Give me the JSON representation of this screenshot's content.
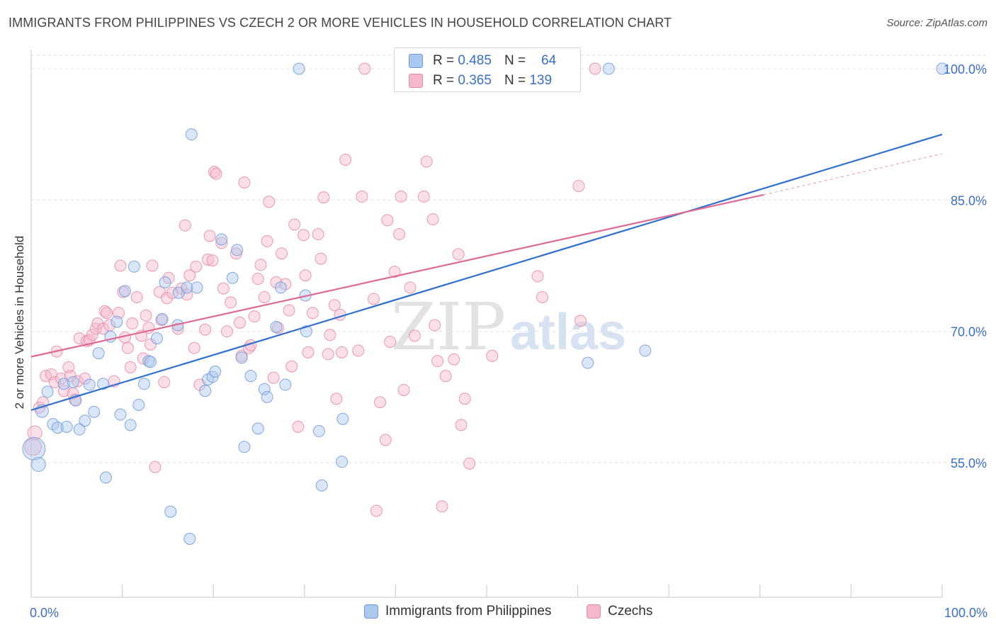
{
  "title": "IMMIGRANTS FROM PHILIPPINES VS CZECH 2 OR MORE VEHICLES IN HOUSEHOLD CORRELATION CHART",
  "source": "Source: ZipAtlas.com",
  "watermark": {
    "part1": "ZIP",
    "part2": "atlas"
  },
  "colors": {
    "blue_fill": "#aac8ee",
    "blue_stroke": "#6e9ad8",
    "blue_line": "#2f6fce",
    "pink_fill": "#f5b8ca",
    "pink_stroke": "#e58aa8",
    "pink_line": "#e06994",
    "accent_text": "#3a6fc7",
    "grid": "#e3e3e3"
  },
  "stats": [
    {
      "swatch": "blue",
      "r_label": "R =",
      "r_value": "0.485",
      "n_label": "N =",
      "n_value": "64"
    },
    {
      "swatch": "pink",
      "r_label": "R =",
      "r_value": "0.365",
      "n_label": "N =",
      "n_value": "139"
    }
  ],
  "legend": [
    {
      "swatch": "blue",
      "label": "Immigrants from Philippines"
    },
    {
      "swatch": "pink",
      "label": "Czechs"
    }
  ],
  "chart_data": {
    "type": "scatter",
    "xlabel": "",
    "ylabel": "2 or more Vehicles in Household",
    "xlim": [
      0,
      100
    ],
    "ylim": [
      41.5,
      101.5
    ],
    "x_tick_labels": [
      {
        "value": 0,
        "label": "0.0%"
      },
      {
        "value": 100,
        "label": "100.0%"
      }
    ],
    "x_minor_ticks": [
      0,
      10,
      20,
      30,
      40,
      50,
      60,
      70,
      80,
      90,
      100
    ],
    "y_ticks": [
      {
        "value": 55,
        "label": "55.0%"
      },
      {
        "value": 70,
        "label": "70.0%"
      },
      {
        "value": 85,
        "label": "85.0%"
      },
      {
        "value": 100,
        "label": "100.0%"
      }
    ],
    "grid": true,
    "legend_position": "bottom-center",
    "series": [
      {
        "name": "Immigrants from Philippines",
        "color": "blue",
        "trend": {
          "x": [
            0,
            100
          ],
          "y": [
            61.0,
            92.5
          ]
        },
        "points": [
          [
            0.3,
            56.6,
            32
          ],
          [
            0.8,
            54.8,
            20
          ],
          [
            1.2,
            60.9,
            18
          ],
          [
            1.8,
            63.1,
            16
          ],
          [
            2.4,
            59.4,
            16
          ],
          [
            2.9,
            59.0,
            16
          ],
          [
            3.6,
            64.0,
            16
          ],
          [
            3.9,
            59.1,
            16
          ],
          [
            4.6,
            64.2,
            16
          ],
          [
            4.9,
            62.1,
            16
          ],
          [
            5.3,
            58.8,
            16
          ],
          [
            5.9,
            59.8,
            16
          ],
          [
            6.4,
            63.9,
            16
          ],
          [
            6.9,
            60.8,
            16
          ],
          [
            7.4,
            67.5,
            16
          ],
          [
            7.9,
            64.0,
            16
          ],
          [
            8.2,
            53.3,
            16
          ],
          [
            8.7,
            69.4,
            16
          ],
          [
            9.4,
            71.1,
            16
          ],
          [
            9.8,
            60.5,
            16
          ],
          [
            10.3,
            74.6,
            16
          ],
          [
            10.9,
            59.3,
            16
          ],
          [
            11.3,
            77.4,
            16
          ],
          [
            11.8,
            61.6,
            16
          ],
          [
            12.4,
            64.0,
            16
          ],
          [
            12.9,
            66.6,
            16
          ],
          [
            13.1,
            66.5,
            16
          ],
          [
            13.8,
            69.2,
            16
          ],
          [
            14.4,
            71.4,
            16
          ],
          [
            14.7,
            75.6,
            16
          ],
          [
            15.3,
            49.4,
            16
          ],
          [
            16.1,
            70.7,
            16
          ],
          [
            16.2,
            74.4,
            16
          ],
          [
            17.1,
            75.0,
            16
          ],
          [
            17.4,
            46.3,
            16
          ],
          [
            17.6,
            92.5,
            16
          ],
          [
            18.2,
            75.0,
            16
          ],
          [
            19.1,
            63.2,
            16
          ],
          [
            19.4,
            64.5,
            16
          ],
          [
            19.9,
            64.8,
            16
          ],
          [
            20.2,
            65.4,
            16
          ],
          [
            20.9,
            80.5,
            16
          ],
          [
            22.1,
            76.1,
            16
          ],
          [
            22.6,
            79.3,
            16
          ],
          [
            23.1,
            67.0,
            16
          ],
          [
            23.4,
            56.8,
            16
          ],
          [
            24.1,
            64.9,
            16
          ],
          [
            24.9,
            58.9,
            16
          ],
          [
            25.6,
            63.4,
            16
          ],
          [
            25.9,
            62.5,
            16
          ],
          [
            26.9,
            70.5,
            16
          ],
          [
            27.4,
            75.0,
            16
          ],
          [
            27.9,
            63.9,
            16
          ],
          [
            29.4,
            100.0,
            16
          ],
          [
            30.1,
            74.1,
            16
          ],
          [
            30.2,
            70.0,
            16
          ],
          [
            31.6,
            58.6,
            16
          ],
          [
            31.9,
            52.4,
            16
          ],
          [
            34.1,
            55.1,
            16
          ],
          [
            34.2,
            60.0,
            16
          ],
          [
            61.1,
            66.4,
            16
          ],
          [
            63.4,
            100.0,
            16
          ],
          [
            67.4,
            67.8,
            16
          ],
          [
            100.0,
            100.0,
            16
          ]
        ]
      },
      {
        "name": "Czechs",
        "color": "pink",
        "trend": {
          "x": [
            0,
            80.4
          ],
          "y": [
            67.1,
            85.6
          ]
        },
        "trend_ext": {
          "x": [
            80.4,
            100
          ],
          "y": [
            85.6,
            90.3
          ]
        },
        "points": [
          [
            0.2,
            56.8,
            24
          ],
          [
            0.4,
            58.4,
            20
          ],
          [
            0.9,
            61.3,
            16
          ],
          [
            1.3,
            61.9,
            16
          ],
          [
            1.6,
            64.9,
            16
          ],
          [
            2.2,
            65.1,
            16
          ],
          [
            2.6,
            64.2,
            16
          ],
          [
            2.8,
            67.7,
            16
          ],
          [
            3.3,
            64.6,
            16
          ],
          [
            3.6,
            63.2,
            16
          ],
          [
            4.1,
            65.9,
            16
          ],
          [
            4.3,
            64.9,
            16
          ],
          [
            4.6,
            62.9,
            16
          ],
          [
            4.8,
            62.2,
            16
          ],
          [
            5.1,
            64.3,
            16
          ],
          [
            5.3,
            69.2,
            16
          ],
          [
            5.9,
            64.6,
            16
          ],
          [
            6.1,
            68.9,
            16
          ],
          [
            6.4,
            69.0,
            16
          ],
          [
            6.7,
            69.6,
            16
          ],
          [
            7.1,
            70.3,
            16
          ],
          [
            7.3,
            70.9,
            16
          ],
          [
            7.9,
            70.3,
            16
          ],
          [
            8.1,
            72.3,
            16
          ],
          [
            8.3,
            72.1,
            16
          ],
          [
            8.6,
            70.7,
            16
          ],
          [
            9.1,
            64.3,
            16
          ],
          [
            9.6,
            72.1,
            16
          ],
          [
            9.8,
            77.5,
            16
          ],
          [
            10.1,
            74.5,
            16
          ],
          [
            10.3,
            69.3,
            16
          ],
          [
            10.6,
            68.1,
            16
          ],
          [
            10.9,
            65.9,
            16
          ],
          [
            11.1,
            70.9,
            16
          ],
          [
            11.6,
            73.9,
            16
          ],
          [
            12.1,
            69.5,
            16
          ],
          [
            12.3,
            66.9,
            16
          ],
          [
            12.6,
            71.8,
            16
          ],
          [
            12.9,
            70.4,
            16
          ],
          [
            13.1,
            68.5,
            16
          ],
          [
            13.3,
            77.5,
            16
          ],
          [
            13.6,
            54.5,
            16
          ],
          [
            14.1,
            74.5,
            16
          ],
          [
            14.3,
            71.3,
            16
          ],
          [
            14.6,
            64.2,
            16
          ],
          [
            14.9,
            73.8,
            16
          ],
          [
            15.1,
            76.1,
            16
          ],
          [
            15.5,
            74.4,
            16
          ],
          [
            16.1,
            70.3,
            16
          ],
          [
            16.5,
            74.9,
            16
          ],
          [
            16.9,
            82.1,
            16
          ],
          [
            17.1,
            74.2,
            16
          ],
          [
            17.4,
            76.4,
            16
          ],
          [
            17.9,
            68.1,
            16
          ],
          [
            18.1,
            77.4,
            16
          ],
          [
            18.5,
            63.9,
            16
          ],
          [
            19.1,
            70.2,
            16
          ],
          [
            19.4,
            78.2,
            16
          ],
          [
            19.6,
            80.9,
            16
          ],
          [
            19.9,
            78.1,
            16
          ],
          [
            20.1,
            88.2,
            16
          ],
          [
            20.3,
            88.0,
            16
          ],
          [
            20.9,
            80.1,
            16
          ],
          [
            21.1,
            74.9,
            16
          ],
          [
            21.5,
            70.0,
            16
          ],
          [
            21.9,
            73.3,
            16
          ],
          [
            22.5,
            78.9,
            16
          ],
          [
            22.9,
            71.0,
            16
          ],
          [
            23.1,
            67.2,
            16
          ],
          [
            23.4,
            87.0,
            16
          ],
          [
            23.9,
            68.1,
            16
          ],
          [
            24.1,
            68.4,
            16
          ],
          [
            24.5,
            71.7,
            16
          ],
          [
            24.9,
            76.0,
            16
          ],
          [
            25.2,
            77.6,
            16
          ],
          [
            25.6,
            73.9,
            16
          ],
          [
            25.9,
            80.3,
            16
          ],
          [
            26.1,
            84.8,
            16
          ],
          [
            26.6,
            64.7,
            16
          ],
          [
            26.9,
            75.6,
            16
          ],
          [
            27.1,
            70.4,
            16
          ],
          [
            27.5,
            78.9,
            16
          ],
          [
            27.9,
            75.4,
            16
          ],
          [
            28.3,
            72.4,
            16
          ],
          [
            28.6,
            66.0,
            16
          ],
          [
            28.9,
            82.2,
            16
          ],
          [
            29.3,
            59.1,
            16
          ],
          [
            29.9,
            81.0,
            16
          ],
          [
            30.1,
            76.4,
            16
          ],
          [
            30.4,
            67.6,
            16
          ],
          [
            30.9,
            72.1,
            16
          ],
          [
            31.5,
            81.1,
            16
          ],
          [
            31.8,
            78.3,
            16
          ],
          [
            32.1,
            85.3,
            16
          ],
          [
            32.6,
            67.4,
            16
          ],
          [
            32.8,
            69.6,
            16
          ],
          [
            33.3,
            73.0,
            16
          ],
          [
            33.5,
            62.3,
            16
          ],
          [
            33.9,
            71.9,
            16
          ],
          [
            34.1,
            67.6,
            16
          ],
          [
            34.5,
            89.6,
            16
          ],
          [
            35.9,
            67.8,
            16
          ],
          [
            36.3,
            85.4,
            16
          ],
          [
            36.6,
            100.0,
            16
          ],
          [
            37.6,
            73.7,
            16
          ],
          [
            37.9,
            49.5,
            16
          ],
          [
            38.3,
            61.9,
            16
          ],
          [
            38.9,
            57.6,
            16
          ],
          [
            39.1,
            82.7,
            16
          ],
          [
            39.4,
            68.8,
            16
          ],
          [
            39.9,
            76.8,
            16
          ],
          [
            40.4,
            81.1,
            16
          ],
          [
            40.6,
            85.4,
            16
          ],
          [
            40.9,
            63.3,
            16
          ],
          [
            41.6,
            75.0,
            16
          ],
          [
            42.1,
            69.5,
            16
          ],
          [
            42.4,
            100.0,
            16
          ],
          [
            43.1,
            85.4,
            16
          ],
          [
            43.4,
            89.4,
            16
          ],
          [
            44.1,
            82.8,
            16
          ],
          [
            44.3,
            70.7,
            16
          ],
          [
            44.6,
            66.6,
            16
          ],
          [
            45.1,
            50.0,
            16
          ],
          [
            45.5,
            64.9,
            16
          ],
          [
            46.4,
            66.8,
            16
          ],
          [
            46.9,
            78.8,
            16
          ],
          [
            47.2,
            59.3,
            16
          ],
          [
            47.6,
            62.3,
            16
          ],
          [
            48.1,
            54.9,
            16
          ],
          [
            50.6,
            67.2,
            16
          ],
          [
            55.6,
            76.3,
            16
          ],
          [
            56.1,
            73.9,
            16
          ],
          [
            60.1,
            86.6,
            16
          ],
          [
            60.3,
            71.2,
            16
          ],
          [
            61.9,
            100.0,
            16
          ]
        ]
      }
    ]
  },
  "axis": {
    "ylabel": "2 or more Vehicles in Household"
  }
}
